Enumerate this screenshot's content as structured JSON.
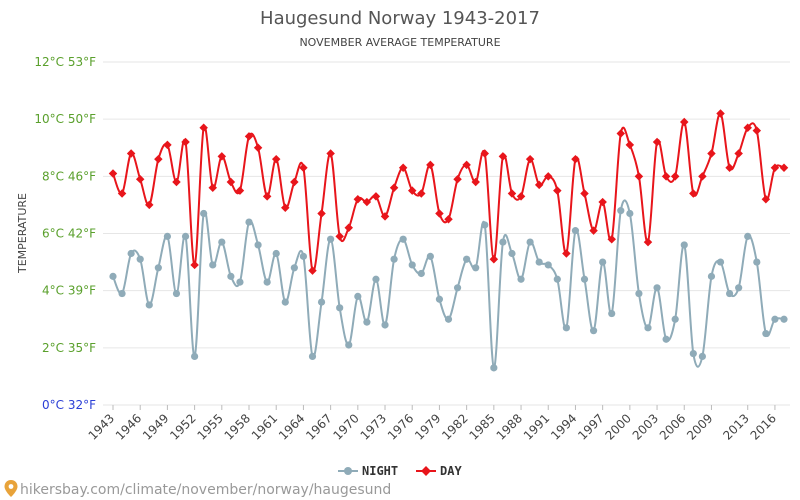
{
  "chart_data": {
    "type": "line",
    "title": "Haugesund Norway 1943-2017",
    "subtitle": "NOVEMBER AVERAGE TEMPERATURE",
    "ylabel": "TEMPERATURE",
    "xlabel": "",
    "ylim": [
      0,
      12
    ],
    "xlim": [
      1943,
      2017
    ],
    "grid": true,
    "legend_placement": "bottom-center",
    "y_ticks": [
      {
        "value": 0,
        "label": "0°C 32°F",
        "color": "#2b3fd6"
      },
      {
        "value": 2,
        "label": "2°C 35°F",
        "color": "#5aa02c"
      },
      {
        "value": 4,
        "label": "4°C 39°F",
        "color": "#5aa02c"
      },
      {
        "value": 6,
        "label": "6°C 42°F",
        "color": "#5aa02c"
      },
      {
        "value": 8,
        "label": "8°C 46°F",
        "color": "#5aa02c"
      },
      {
        "value": 10,
        "label": "10°C 50°F",
        "color": "#5aa02c"
      },
      {
        "value": 12,
        "label": "12°C 53°F",
        "color": "#5aa02c"
      }
    ],
    "x_ticks": [
      1943,
      1946,
      1949,
      1952,
      1955,
      1958,
      1961,
      1964,
      1967,
      1970,
      1973,
      1976,
      1979,
      1982,
      1985,
      1988,
      1991,
      1994,
      1997,
      2000,
      2003,
      2006,
      2009,
      2013,
      2016
    ],
    "x": [
      1943,
      1944,
      1945,
      1946,
      1947,
      1948,
      1949,
      1950,
      1951,
      1952,
      1953,
      1954,
      1955,
      1956,
      1957,
      1958,
      1959,
      1960,
      1961,
      1962,
      1963,
      1964,
      1965,
      1966,
      1967,
      1968,
      1969,
      1970,
      1971,
      1972,
      1973,
      1974,
      1975,
      1976,
      1977,
      1978,
      1979,
      1980,
      1981,
      1982,
      1983,
      1984,
      1985,
      1986,
      1987,
      1988,
      1989,
      1990,
      1991,
      1992,
      1993,
      1994,
      1995,
      1996,
      1997,
      1998,
      1999,
      2000,
      2001,
      2002,
      2003,
      2004,
      2005,
      2006,
      2007,
      2008,
      2009,
      2010,
      2011,
      2012,
      2013,
      2014,
      2015,
      2016,
      2017
    ],
    "series": [
      {
        "name": "NIGHT",
        "color": "#8fabb8",
        "marker": "circle",
        "values": [
          4.5,
          3.9,
          5.3,
          5.1,
          3.5,
          4.8,
          5.9,
          3.9,
          5.9,
          1.7,
          6.7,
          4.9,
          5.7,
          4.5,
          4.3,
          6.4,
          5.6,
          4.3,
          5.3,
          3.6,
          4.8,
          5.2,
          1.7,
          3.6,
          5.8,
          3.4,
          2.1,
          3.8,
          2.9,
          4.4,
          2.8,
          5.1,
          5.8,
          4.9,
          4.6,
          5.2,
          3.7,
          3.0,
          4.1,
          5.1,
          4.8,
          6.3,
          1.3,
          5.7,
          5.3,
          4.4,
          5.7,
          5.0,
          4.9,
          4.4,
          2.7,
          6.1,
          4.4,
          2.6,
          5.0,
          3.2,
          6.8,
          6.7,
          3.9,
          2.7,
          4.1,
          2.3,
          3.0,
          5.6,
          1.8,
          1.7,
          4.5,
          5.0,
          3.9,
          4.1,
          5.9,
          5.0,
          2.5,
          3.0,
          3.0
        ]
      },
      {
        "name": "DAY",
        "color": "#e8151b",
        "marker": "diamond",
        "values": [
          8.1,
          7.4,
          8.8,
          7.9,
          7.0,
          8.6,
          9.1,
          7.8,
          9.2,
          4.9,
          9.7,
          7.6,
          8.7,
          7.8,
          7.5,
          9.4,
          9.0,
          7.3,
          8.6,
          6.9,
          7.8,
          8.3,
          4.7,
          6.7,
          8.8,
          5.9,
          6.2,
          7.2,
          7.1,
          7.3,
          6.6,
          7.6,
          8.3,
          7.5,
          7.4,
          8.4,
          6.7,
          6.5,
          7.9,
          8.4,
          7.8,
          8.8,
          5.1,
          8.7,
          7.4,
          7.3,
          8.6,
          7.7,
          8.0,
          7.5,
          5.3,
          8.6,
          7.4,
          6.1,
          7.1,
          5.8,
          9.5,
          9.1,
          8.0,
          5.7,
          9.2,
          8.0,
          8.0,
          9.9,
          7.4,
          8.0,
          8.8,
          10.2,
          8.3,
          8.8,
          9.7,
          9.6,
          7.2,
          8.3,
          8.3
        ]
      }
    ]
  },
  "watermark": {
    "icon": "map-pin-icon",
    "text": "hikersbay.com/climate/november/norway/haugesund"
  }
}
